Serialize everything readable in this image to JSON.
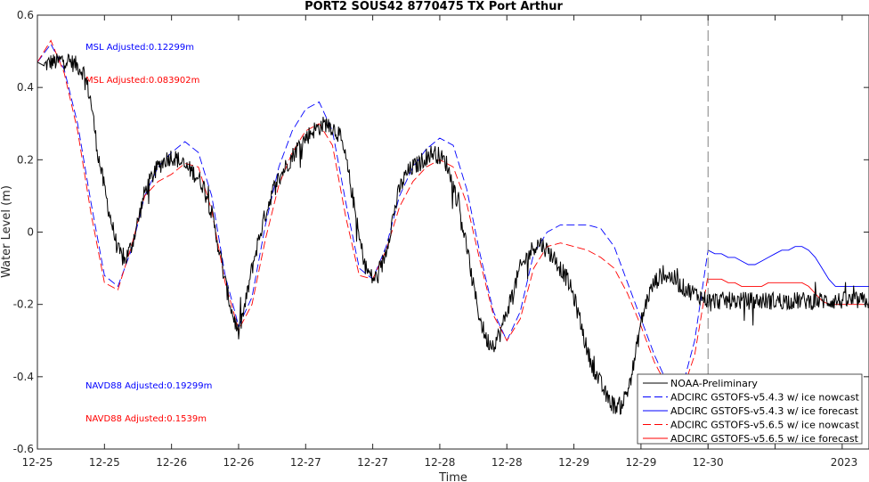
{
  "chart_data": {
    "type": "line",
    "title": "PORT2 SOUS42 8770475 TX Port Arthur",
    "xlabel": "Time",
    "ylabel": "Water Level (m)",
    "ylim": [
      -0.6,
      0.6
    ],
    "xlim": [
      0,
      6.2
    ],
    "x_unit": "days since 12-25 00:00",
    "xticks": [
      0,
      0.5,
      1,
      1.5,
      2,
      2.5,
      3,
      3.5,
      4,
      4.5,
      5,
      5.5,
      6
    ],
    "xtick_labels": [
      "12-25",
      "12-25",
      "12-26",
      "12-26",
      "12-27",
      "12-27",
      "12-28",
      "12-28",
      "12-29",
      "12-29",
      "12-30",
      "",
      ""
    ],
    "x_year_label": "2023",
    "yticks": [
      -0.6,
      -0.4,
      -0.2,
      0,
      0.2,
      0.4,
      0.6
    ],
    "ytick_labels": [
      "-0.6",
      "-0.4",
      "-0.2",
      "0",
      "0.2",
      "0.4",
      "0.6"
    ],
    "grid": false,
    "legend_position": "bottom-right",
    "nowcast_forecast_divider_x": 5.0,
    "annotations": [
      {
        "text": "MSL Adjusted:0.12299m",
        "color": "#0000ff"
      },
      {
        "text": "MSL Adjusted:0.083902m",
        "color": "#ff0000"
      },
      {
        "text": "NAVD88 Adjusted:0.19299m",
        "color": "#0000ff"
      },
      {
        "text": "NAVD88 Adjusted:0.1539m",
        "color": "#ff0000"
      }
    ],
    "series": [
      {
        "name": "NOAA-Preliminary",
        "color": "#000000",
        "style": "solid",
        "noisy": true,
        "x": [
          0,
          0.05,
          0.1,
          0.15,
          0.2,
          0.25,
          0.3,
          0.35,
          0.4,
          0.45,
          0.5,
          0.55,
          0.6,
          0.65,
          0.7,
          0.75,
          0.8,
          0.85,
          0.9,
          0.95,
          1.0,
          1.05,
          1.1,
          1.15,
          1.2,
          1.25,
          1.3,
          1.35,
          1.4,
          1.45,
          1.5,
          1.55,
          1.6,
          1.65,
          1.7,
          1.75,
          1.8,
          1.85,
          1.9,
          1.95,
          2.0,
          2.05,
          2.1,
          2.15,
          2.2,
          2.25,
          2.3,
          2.35,
          2.4,
          2.45,
          2.5,
          2.55,
          2.6,
          2.65,
          2.7,
          2.75,
          2.8,
          2.85,
          2.9,
          2.95,
          3.0,
          3.05,
          3.1,
          3.15,
          3.2,
          3.25,
          3.3,
          3.35,
          3.4,
          3.45,
          3.5,
          3.55,
          3.6,
          3.65,
          3.7,
          3.75,
          3.8,
          3.85,
          3.9,
          3.95,
          4.0,
          4.05,
          4.1,
          4.15,
          4.2,
          4.25,
          4.3,
          4.35,
          4.4,
          4.45,
          4.5,
          4.55,
          4.6,
          4.65,
          4.7,
          4.75,
          4.8,
          4.85,
          4.9,
          4.95,
          5.0,
          5.05,
          5.1,
          5.15,
          5.2,
          5.25,
          5.3,
          5.35,
          5.4,
          5.45,
          5.5,
          5.55,
          5.6,
          5.65,
          5.7,
          5.75,
          5.8,
          5.85,
          5.9,
          5.95,
          6.0,
          6.05,
          6.1,
          6.15,
          6.2
        ],
        "values": [
          0.47,
          0.46,
          0.47,
          0.47,
          0.48,
          0.47,
          0.46,
          0.44,
          0.36,
          0.22,
          0.12,
          0.03,
          -0.05,
          -0.08,
          -0.04,
          0.03,
          0.11,
          0.15,
          0.18,
          0.2,
          0.21,
          0.2,
          0.18,
          0.17,
          0.15,
          0.12,
          0.05,
          -0.04,
          -0.14,
          -0.22,
          -0.28,
          -0.2,
          -0.1,
          -0.02,
          0.05,
          0.11,
          0.15,
          0.18,
          0.21,
          0.24,
          0.26,
          0.28,
          0.29,
          0.3,
          0.29,
          0.27,
          0.2,
          0.1,
          -0.02,
          -0.1,
          -0.13,
          -0.12,
          -0.05,
          0.04,
          0.12,
          0.16,
          0.18,
          0.19,
          0.21,
          0.22,
          0.21,
          0.19,
          0.13,
          0.06,
          -0.04,
          -0.15,
          -0.24,
          -0.3,
          -0.31,
          -0.28,
          -0.22,
          -0.16,
          -0.1,
          -0.07,
          -0.04,
          -0.03,
          -0.05,
          -0.07,
          -0.1,
          -0.13,
          -0.18,
          -0.25,
          -0.33,
          -0.38,
          -0.42,
          -0.46,
          -0.48,
          -0.48,
          -0.44,
          -0.36,
          -0.25,
          -0.18,
          -0.14,
          -0.12,
          -0.12,
          -0.13,
          -0.15,
          -0.16,
          -0.17,
          -0.18,
          -0.19,
          -0.19,
          -0.19,
          -0.19,
          -0.19,
          -0.19,
          -0.19,
          -0.19,
          -0.19,
          -0.19,
          -0.19,
          -0.19,
          -0.19,
          -0.19,
          -0.19,
          -0.19,
          -0.19,
          -0.19,
          -0.19,
          -0.19,
          -0.19,
          -0.19,
          -0.19,
          -0.19,
          -0.19
        ]
      },
      {
        "name": "ADCIRC GSTOFS-v5.4.3 w/ ice nowcast",
        "color": "#0000ff",
        "style": "dashed",
        "x": [
          0,
          0.1,
          0.2,
          0.3,
          0.4,
          0.5,
          0.6,
          0.7,
          0.8,
          0.9,
          1.0,
          1.1,
          1.2,
          1.3,
          1.4,
          1.5,
          1.6,
          1.7,
          1.8,
          1.9,
          2.0,
          2.1,
          2.2,
          2.3,
          2.4,
          2.5,
          2.6,
          2.7,
          2.8,
          2.9,
          3.0,
          3.1,
          3.2,
          3.3,
          3.4,
          3.5,
          3.6,
          3.7,
          3.8,
          3.9,
          4.0,
          4.1,
          4.2,
          4.3,
          4.4,
          4.5,
          4.6,
          4.7,
          4.8,
          4.9,
          5.0
        ],
        "values": [
          0.47,
          0.52,
          0.45,
          0.3,
          0.08,
          -0.12,
          -0.15,
          -0.05,
          0.1,
          0.18,
          0.22,
          0.25,
          0.22,
          0.1,
          -0.12,
          -0.26,
          -0.18,
          0.02,
          0.18,
          0.28,
          0.34,
          0.36,
          0.28,
          0.08,
          -0.1,
          -0.13,
          -0.04,
          0.1,
          0.18,
          0.23,
          0.26,
          0.24,
          0.12,
          -0.06,
          -0.22,
          -0.3,
          -0.22,
          -0.06,
          0.0,
          0.02,
          0.02,
          0.02,
          0.01,
          -0.04,
          -0.14,
          -0.24,
          -0.34,
          -0.42,
          -0.44,
          -0.3,
          -0.05
        ]
      },
      {
        "name": "ADCIRC GSTOFS-v5.4.3 w/ ice forecast",
        "color": "#0000ff",
        "style": "solid",
        "x": [
          5.0,
          5.05,
          5.1,
          5.15,
          5.2,
          5.25,
          5.3,
          5.35,
          5.4,
          5.45,
          5.5,
          5.55,
          5.6,
          5.65,
          5.7,
          5.75,
          5.8,
          5.85,
          5.9,
          5.95,
          6.0,
          6.05,
          6.1,
          6.15,
          6.2
        ],
        "values": [
          -0.05,
          -0.06,
          -0.06,
          -0.07,
          -0.07,
          -0.08,
          -0.09,
          -0.09,
          -0.08,
          -0.07,
          -0.06,
          -0.05,
          -0.05,
          -0.04,
          -0.04,
          -0.05,
          -0.07,
          -0.1,
          -0.13,
          -0.15,
          -0.15,
          -0.15,
          -0.15,
          -0.15,
          -0.15
        ]
      },
      {
        "name": "ADCIRC GSTOFS-v5.6.5 w/ ice nowcast",
        "color": "#ff0000",
        "style": "dashed",
        "x": [
          0,
          0.1,
          0.2,
          0.3,
          0.4,
          0.5,
          0.6,
          0.7,
          0.8,
          0.9,
          1.0,
          1.1,
          1.2,
          1.3,
          1.4,
          1.5,
          1.6,
          1.7,
          1.8,
          1.9,
          2.0,
          2.1,
          2.2,
          2.3,
          2.4,
          2.5,
          2.6,
          2.7,
          2.8,
          2.9,
          3.0,
          3.1,
          3.2,
          3.3,
          3.4,
          3.5,
          3.6,
          3.7,
          3.8,
          3.9,
          4.0,
          4.1,
          4.2,
          4.3,
          4.4,
          4.5,
          4.6,
          4.7,
          4.8,
          4.9,
          5.0
        ],
        "values": [
          0.47,
          0.53,
          0.44,
          0.28,
          0.05,
          -0.14,
          -0.16,
          -0.04,
          0.1,
          0.14,
          0.16,
          0.19,
          0.18,
          0.06,
          -0.14,
          -0.27,
          -0.2,
          -0.02,
          0.13,
          0.22,
          0.28,
          0.3,
          0.24,
          0.04,
          -0.12,
          -0.13,
          -0.05,
          0.07,
          0.14,
          0.18,
          0.2,
          0.18,
          0.08,
          -0.08,
          -0.23,
          -0.3,
          -0.24,
          -0.1,
          -0.04,
          -0.03,
          -0.04,
          -0.05,
          -0.07,
          -0.1,
          -0.17,
          -0.26,
          -0.36,
          -0.43,
          -0.45,
          -0.34,
          -0.12
        ]
      },
      {
        "name": "ADCIRC GSTOFS-v5.6.5 w/ ice forecast",
        "color": "#ff0000",
        "style": "solid",
        "x": [
          5.0,
          5.05,
          5.1,
          5.15,
          5.2,
          5.25,
          5.3,
          5.35,
          5.4,
          5.45,
          5.5,
          5.55,
          5.6,
          5.65,
          5.7,
          5.75,
          5.8,
          5.85,
          5.9,
          5.95,
          6.0,
          6.05,
          6.1,
          6.15,
          6.2
        ],
        "values": [
          -0.13,
          -0.13,
          -0.13,
          -0.14,
          -0.14,
          -0.15,
          -0.15,
          -0.15,
          -0.15,
          -0.14,
          -0.14,
          -0.14,
          -0.14,
          -0.14,
          -0.14,
          -0.15,
          -0.17,
          -0.19,
          -0.2,
          -0.2,
          -0.2,
          -0.2,
          -0.2,
          -0.2,
          -0.2
        ]
      }
    ]
  }
}
